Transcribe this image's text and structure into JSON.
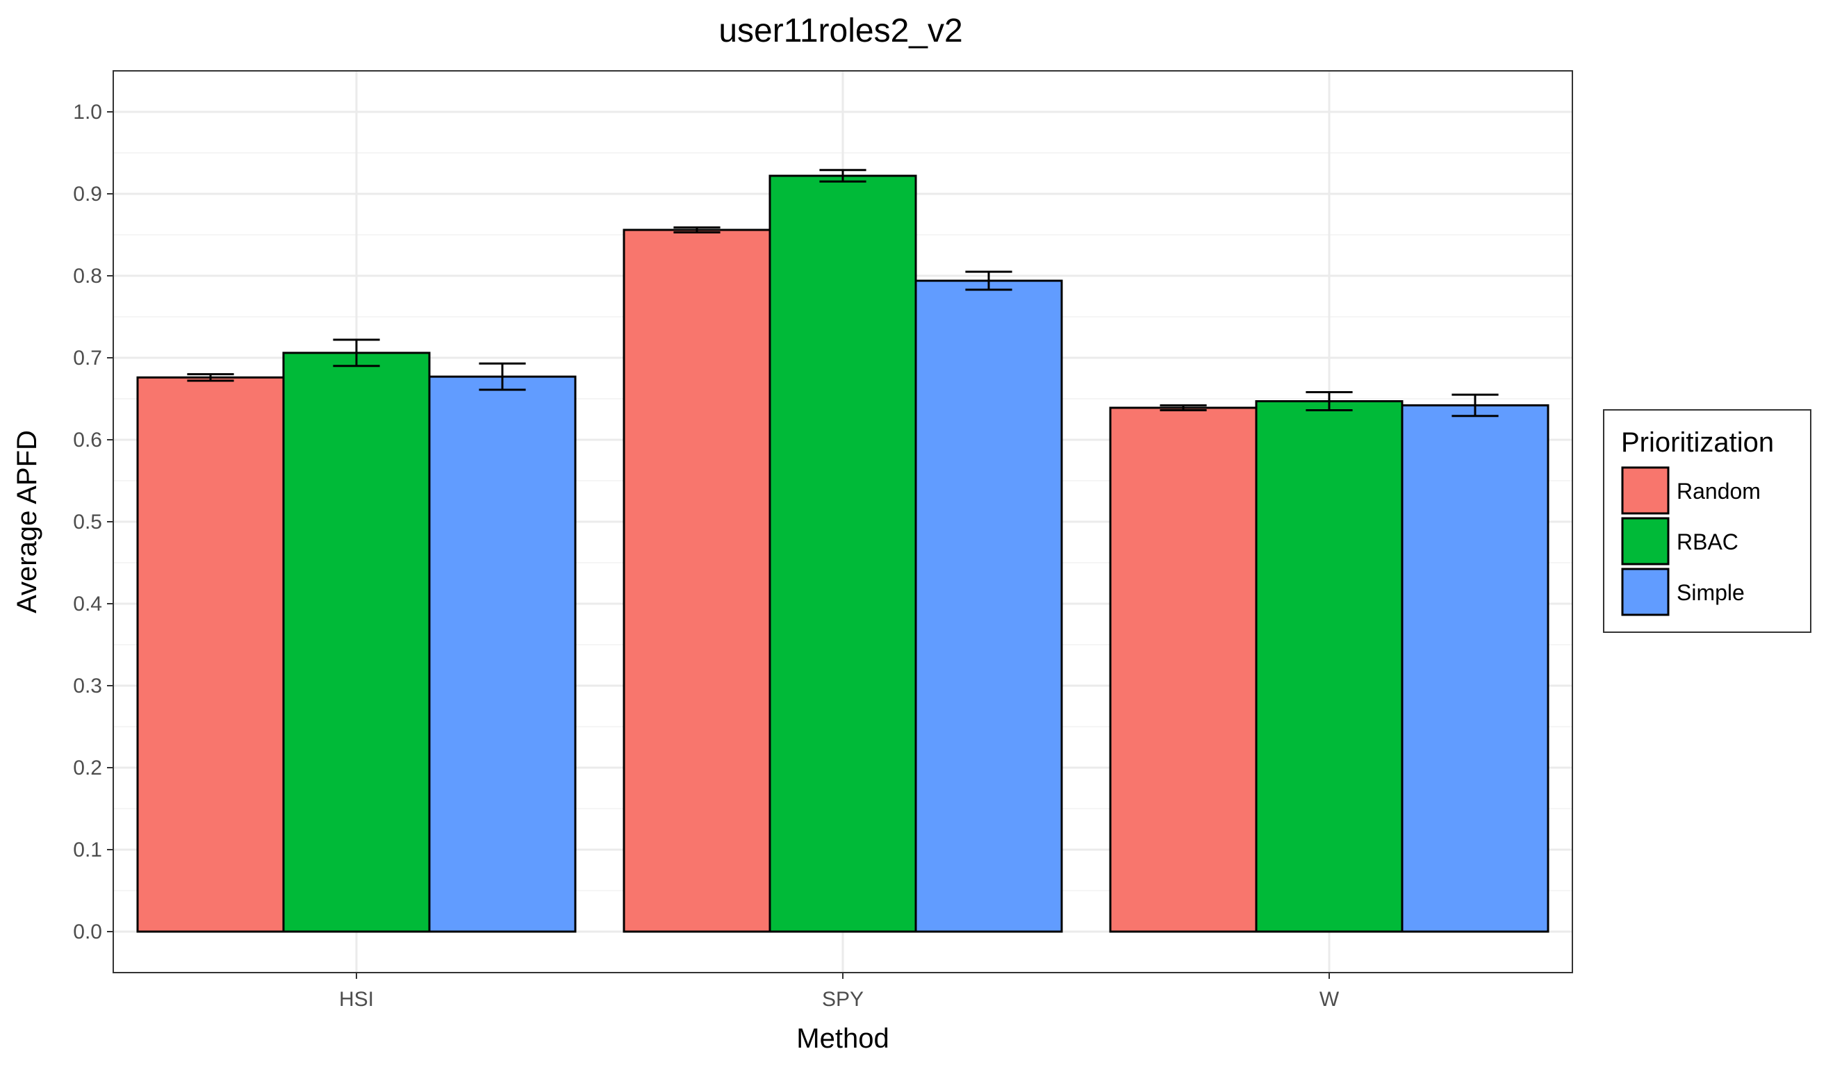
{
  "chart_data": {
    "type": "bar",
    "title": "user11roles2_v2",
    "xlabel": "Method",
    "ylabel": "Average APFD",
    "categories": [
      "HSI",
      "SPY",
      "W"
    ],
    "ylim": [
      -0.05,
      1.05
    ],
    "yticks": [
      "0.0",
      "0.1",
      "0.2",
      "0.3",
      "0.4",
      "0.5",
      "0.6",
      "0.7",
      "0.8",
      "0.9",
      "1.0"
    ],
    "grid": true,
    "legend": {
      "title": "Prioritization",
      "placement": "right"
    },
    "series": [
      {
        "name": "Random",
        "color": "#F8766D",
        "values": [
          0.676,
          0.856,
          0.639
        ],
        "error": [
          0.004,
          0.003,
          0.003
        ]
      },
      {
        "name": "RBAC",
        "color": "#00BA38",
        "values": [
          0.706,
          0.922,
          0.647
        ],
        "error": [
          0.016,
          0.007,
          0.011
        ]
      },
      {
        "name": "Simple",
        "color": "#619CFF",
        "values": [
          0.677,
          0.794,
          0.642
        ],
        "error": [
          0.016,
          0.011,
          0.013
        ]
      }
    ]
  }
}
